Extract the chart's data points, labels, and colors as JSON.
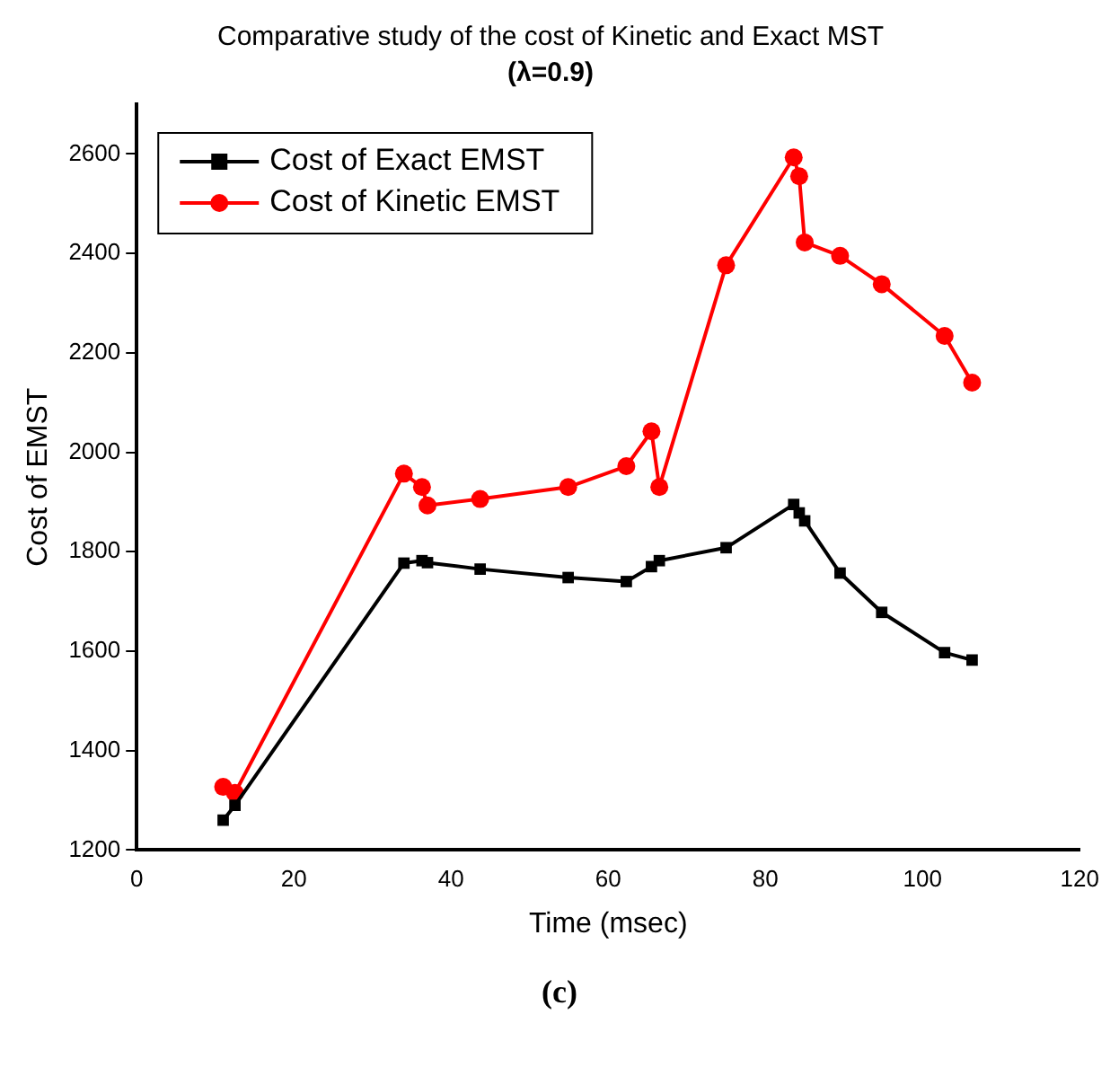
{
  "chart_data": {
    "type": "line",
    "title": "Comparative study of the cost of Kinetic and Exact MST",
    "subtitle": "(λ=0.9)",
    "xlabel": "Time (msec)",
    "ylabel": "Cost of EMST",
    "xlim": [
      0,
      120
    ],
    "xticks": [
      0,
      20,
      40,
      60,
      80,
      100,
      120
    ],
    "ylim": [
      1200,
      2700
    ],
    "yticks": [
      1200,
      1400,
      1600,
      1800,
      2000,
      2200,
      2400,
      2600
    ],
    "grid": false,
    "legend": "top left",
    "line_style": "solid",
    "annotations": [
      "(c)"
    ],
    "series": [
      {
        "name": "Cost of Exact EMST",
        "color": "#000000",
        "marker": "square",
        "x": [
          11,
          12.5,
          34,
          36.3,
          37,
          43.7,
          54.9,
          62.3,
          65.5,
          66.5,
          75,
          83.6,
          84.3,
          85,
          89.5,
          94.8,
          102.8,
          106.3
        ],
        "values": [
          1260,
          1290,
          1777,
          1782,
          1778,
          1765,
          1748,
          1740,
          1770,
          1782,
          1808,
          1895,
          1878,
          1862,
          1757,
          1678,
          1597,
          1582
        ]
      },
      {
        "name": "Cost of Kinetic EMST",
        "color": "#ff0000",
        "marker": "circle",
        "x": [
          11,
          12.5,
          34,
          36.3,
          37,
          43.7,
          54.9,
          62.3,
          65.5,
          66.5,
          75,
          83.6,
          84.3,
          85,
          89.5,
          94.8,
          102.8,
          106.3
        ],
        "values": [
          1327,
          1315,
          1957,
          1930,
          1893,
          1906,
          1930,
          1972,
          2042,
          1930,
          2376,
          2593,
          2555,
          2422,
          2395,
          2338,
          2234,
          2140
        ]
      }
    ]
  }
}
